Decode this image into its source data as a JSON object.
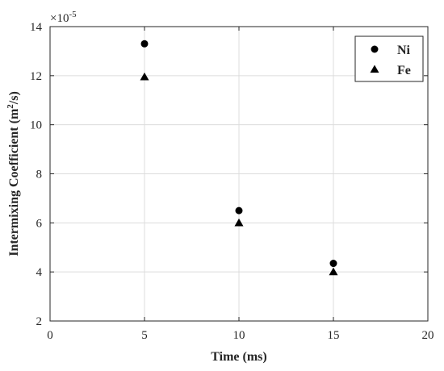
{
  "chart_data": {
    "type": "scatter",
    "xlabel": "Time (ms)",
    "ylabel_main": "Intermixing Coefficient (m",
    "ylabel_sup": "2",
    "ylabel_end": "/s)",
    "y_multiplier": {
      "base": "×10",
      "exponent": "-5"
    },
    "xlim": [
      0,
      20
    ],
    "ylim": [
      2,
      14
    ],
    "x_ticks": [
      0,
      5,
      10,
      15,
      20
    ],
    "y_ticks": [
      2,
      4,
      6,
      8,
      10,
      12,
      14
    ],
    "grid": true,
    "legend_position": "top-right",
    "series": [
      {
        "name": "Ni",
        "marker": "circle",
        "color": "#000000",
        "x": [
          5,
          10,
          15
        ],
        "y": [
          13.3,
          6.5,
          4.35
        ]
      },
      {
        "name": "Fe",
        "marker": "triangle",
        "color": "#000000",
        "x": [
          5,
          10,
          15
        ],
        "y": [
          11.95,
          6.0,
          4.0
        ]
      }
    ]
  }
}
